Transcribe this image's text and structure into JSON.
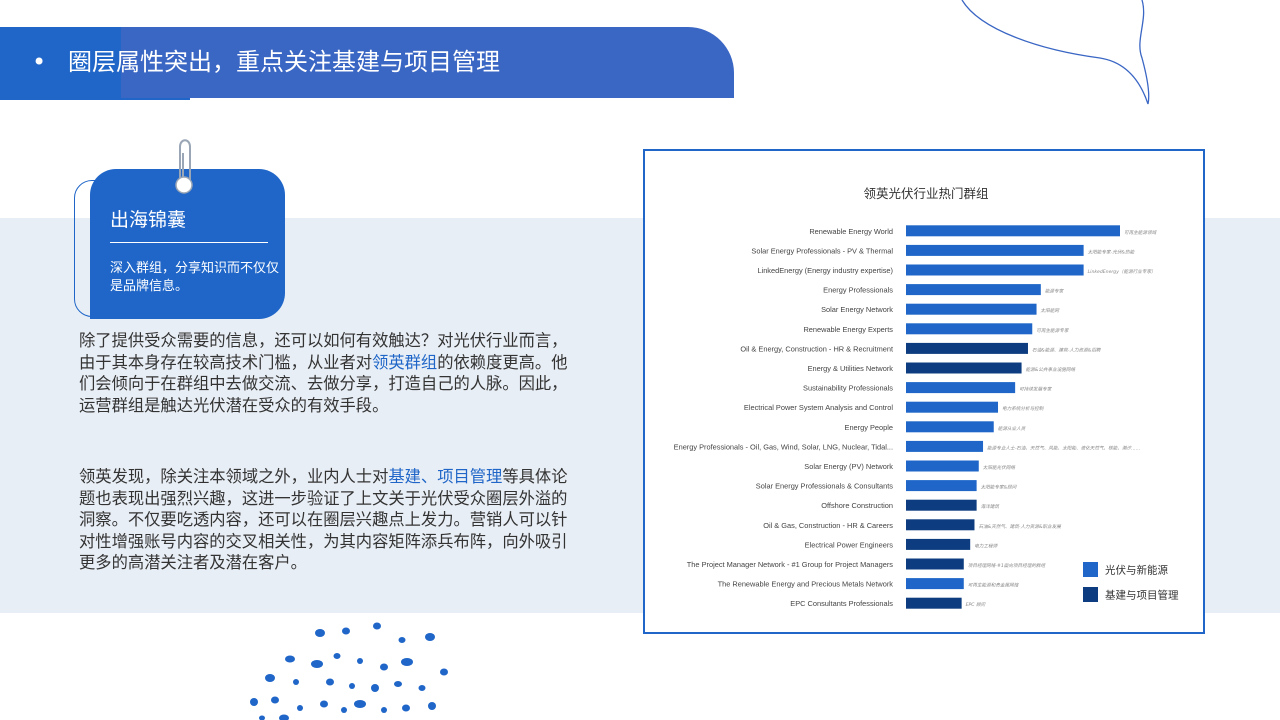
{
  "header": {
    "bullet": "•",
    "title": "圈层属性突出，重点关注基建与项目管理"
  },
  "card": {
    "title": "出海锦囊",
    "subtitle": "深入群组，分享知识而不仅仅是品牌信息。"
  },
  "body": {
    "p1": [
      "除了提供受众需要的信息，还可以如何有效触达？对光伏行业而言，由于其本身存在较高技术门槛，从业者对",
      "领英群组",
      "的依赖度更高。他们会倾向于在群组中去做交流、去做分享，打造自己的人脉。因此，运营群组是触达光伏潜在受众的有效手段。"
    ],
    "p2": [
      "领英发现，除关注本领域之外，业内人士对",
      "基建、项目管理",
      "等具体论题也表现出强烈兴趣，这进一步验证了上文关于光伏受众圈层外溢的洞察。不仅要吃透内容，还可以在圈层兴趣点上发力。营销人可以针对性增强账号内容的交叉相关性，为其内容矩阵添兵布阵，向外吸引更多的高潜关注者及潜在客户。"
    ]
  },
  "colors": {
    "accent": "#1f66c8",
    "header": "#3a66c4",
    "pv": "#1f66c8",
    "infra": "#0d3d80"
  },
  "icons": {
    "clip": "paperclip-icon",
    "curve": "decorative-curve-icon",
    "dots": "decorative-dots-icon"
  },
  "chart_data": {
    "type": "bar",
    "orientation": "horizontal",
    "title": "领英光伏行业热门群组",
    "legend_position": "bottom-right",
    "series": [
      {
        "name": "光伏与新能源",
        "key": "pv"
      },
      {
        "name": "基建与项目管理",
        "key": "infra"
      }
    ],
    "categories": [
      {
        "label": "Renewable Energy World",
        "cn": "可再生能源领域",
        "value": 100,
        "series": "pv"
      },
      {
        "label": "Solar Energy Professionals - PV & Thermal",
        "cn": "太阳能专家-光伏&热能",
        "value": 83,
        "series": "pv"
      },
      {
        "label": "LinkedEnergy (Energy industry expertise)",
        "cn": "LinkedEnergy（能源行业专家）",
        "value": 83,
        "series": "pv"
      },
      {
        "label": "Energy Professionals",
        "cn": "能源专家",
        "value": 63,
        "series": "pv"
      },
      {
        "label": "Solar Energy Network",
        "cn": "太阳能网",
        "value": 61,
        "series": "pv"
      },
      {
        "label": "Renewable Energy Experts",
        "cn": "可再生能源专家",
        "value": 59,
        "series": "pv"
      },
      {
        "label": "Oil & Energy, Construction - HR & Recruitment",
        "cn": "石油&能源、建筑-人力资源&招聘",
        "value": 57,
        "series": "infra"
      },
      {
        "label": "Energy & Utilities Network",
        "cn": "能源&公共事业设施网络",
        "value": 54,
        "series": "infra"
      },
      {
        "label": "Sustainability Professionals",
        "cn": "可持续发展专家",
        "value": 51,
        "series": "pv"
      },
      {
        "label": "Electrical Power System Analysis and Control",
        "cn": "电力系统分析与控制",
        "value": 43,
        "series": "pv"
      },
      {
        "label": "Energy People",
        "cn": "能源从业人员",
        "value": 41,
        "series": "pv"
      },
      {
        "label": "Energy Professionals - Oil, Gas, Wind, Solar, LNG, Nuclear, Tidal...",
        "cn": "能源专业人士-石油、天然气、风能、太阳能、液化天然气、核能、潮汐……",
        "value": 36,
        "series": "pv"
      },
      {
        "label": "Solar Energy (PV) Network",
        "cn": "太阳能光伏网络",
        "value": 34,
        "series": "pv"
      },
      {
        "label": "Solar Energy Professionals & Consultants",
        "cn": "太阳能专家&顾问",
        "value": 33,
        "series": "pv"
      },
      {
        "label": "Offshore Construction",
        "cn": "海洋建筑",
        "value": 33,
        "series": "infra"
      },
      {
        "label": "Oil & Gas, Construction - HR & Careers",
        "cn": "石油&天然气、建筑-人力资源&职业发展",
        "value": 32,
        "series": "infra"
      },
      {
        "label": "Electrical Power Engineers",
        "cn": "电力工程师",
        "value": 30,
        "series": "infra"
      },
      {
        "label": "The Project Manager Network - #1 Group for Project Managers",
        "cn": "项目经理网络-#1面向项目经理的群组",
        "value": 27,
        "series": "infra"
      },
      {
        "label": "The Renewable Energy and Precious Metals Network",
        "cn": "可再生能源和贵金属网络",
        "value": 27,
        "series": "pv"
      },
      {
        "label": "EPC Consultants Professionals",
        "cn": "EPC 顾问",
        "value": 26,
        "series": "infra"
      }
    ]
  }
}
